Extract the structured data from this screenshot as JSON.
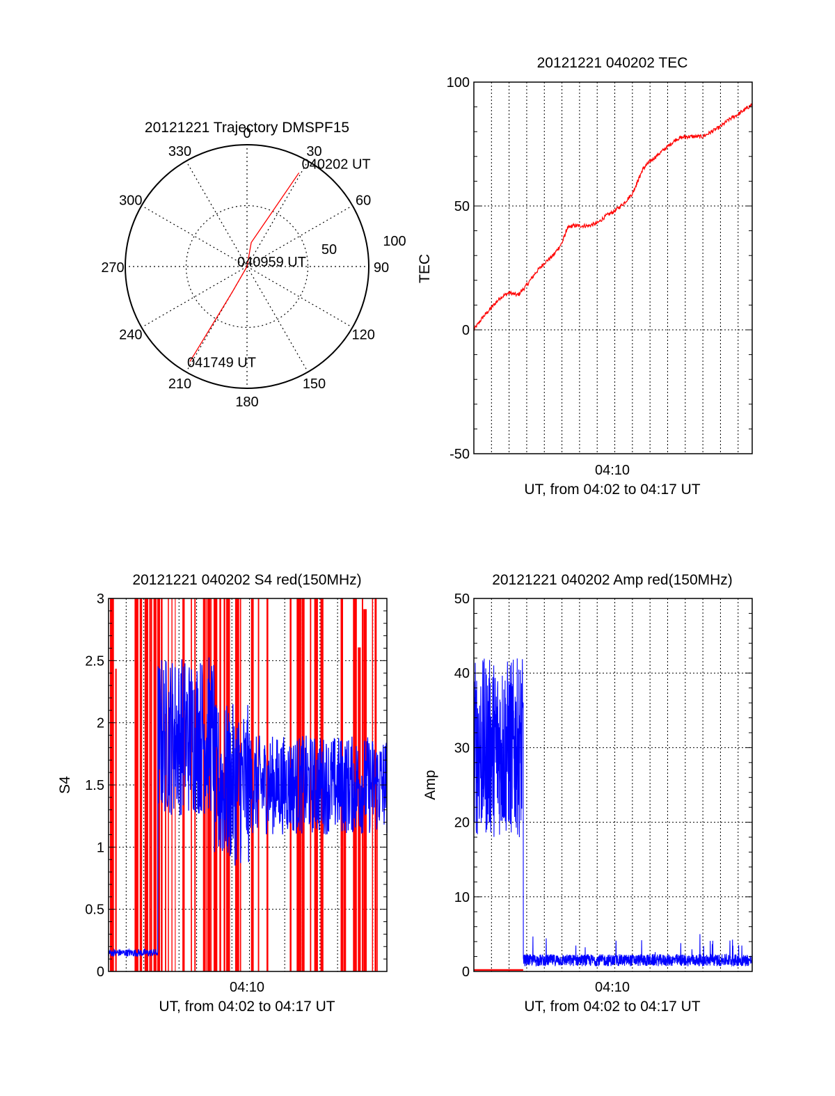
{
  "chart_data": [
    {
      "id": "polar",
      "type": "polar",
      "title": "20121221 Trajectory DMSPF15",
      "azimuth_labels": [
        "0",
        "30",
        "60",
        "90",
        "120",
        "150",
        "180",
        "210",
        "240",
        "270",
        "300",
        "330"
      ],
      "radial_labels": [
        "50",
        "100"
      ],
      "rlim": [
        0,
        100
      ],
      "trajectory": [
        {
          "az": 29,
          "r": 88,
          "label": "040202 UT"
        },
        {
          "az": 10,
          "r": 20,
          "label": ""
        },
        {
          "az": 0,
          "r": 0,
          "label": "040959 UT"
        },
        {
          "az": 210,
          "r": 24,
          "label": ""
        },
        {
          "az": 211,
          "r": 91,
          "label": "041749 UT"
        }
      ],
      "color": "#ff0000"
    },
    {
      "id": "tec",
      "type": "line",
      "title": "20121221 040202 TEC",
      "ylabel": "TEC",
      "xlabel": "UT, from 04:02 to 04:17 UT",
      "x_tick_label": "04:10",
      "y_ticks": [
        "-50",
        "0",
        "50",
        "100"
      ],
      "ylim": [
        -50,
        100
      ],
      "xlim_minutes": [
        0,
        15.8
      ],
      "series": [
        {
          "color": "#ff0000",
          "points": [
            [
              0,
              0
            ],
            [
              0.5,
              5
            ],
            [
              1,
              9
            ],
            [
              1.5,
              13
            ],
            [
              2,
              15
            ],
            [
              2.5,
              14
            ],
            [
              3,
              18
            ],
            [
              3.5,
              23
            ],
            [
              4,
              27
            ],
            [
              4.5,
              30
            ],
            [
              5,
              35
            ],
            [
              5.3,
              41
            ],
            [
              5.6,
              42
            ],
            [
              6,
              42
            ],
            [
              6.5,
              42
            ],
            [
              7,
              43
            ],
            [
              7.5,
              46
            ],
            [
              8,
              48
            ],
            [
              8.5,
              51
            ],
            [
              9,
              55
            ],
            [
              9.3,
              60
            ],
            [
              9.6,
              65
            ],
            [
              10,
              68
            ],
            [
              10.5,
              71
            ],
            [
              11,
              74
            ],
            [
              11.5,
              77
            ],
            [
              12,
              78
            ],
            [
              12.5,
              78
            ],
            [
              13,
              78
            ],
            [
              13.5,
              80
            ],
            [
              14,
              82
            ],
            [
              14.5,
              85
            ],
            [
              15,
              87
            ],
            [
              15.4,
              89
            ],
            [
              15.8,
              91
            ]
          ]
        }
      ]
    },
    {
      "id": "s4",
      "type": "line",
      "title": "20121221 040202 S4 red(150MHz)",
      "ylabel": "S4",
      "xlabel": "UT, from 04:02 to 04:17 UT",
      "x_tick_label": "04:10",
      "y_ticks": [
        "0",
        "0.5",
        "1",
        "1.5",
        "2",
        "2.5",
        "3"
      ],
      "ylim": [
        0,
        3
      ],
      "xlim_minutes": [
        0,
        15.8
      ],
      "series": [
        {
          "name": "red",
          "color": "#ff0000",
          "description_level": "saturated"
        },
        {
          "name": "blue",
          "color": "#0000ff",
          "early_level": 0.15,
          "early_end_minute": 2.8,
          "late_level": 1.5
        }
      ]
    },
    {
      "id": "amp",
      "type": "line",
      "title": "20121221 040202 Amp red(150MHz)",
      "ylabel": "Amp",
      "xlabel": "UT, from 04:02 to 04:17 UT",
      "x_tick_label": "04:10",
      "y_ticks": [
        "0",
        "10",
        "20",
        "30",
        "40",
        "50"
      ],
      "ylim": [
        0,
        50
      ],
      "xlim_minutes": [
        0,
        15.8
      ],
      "series": [
        {
          "name": "blue",
          "color": "#0000ff",
          "early_level": 30,
          "early_end_minute": 2.8,
          "late_level": 1.5
        },
        {
          "name": "red",
          "color": "#ff0000",
          "level": 0.2,
          "end_minute": 2.8
        }
      ]
    }
  ]
}
